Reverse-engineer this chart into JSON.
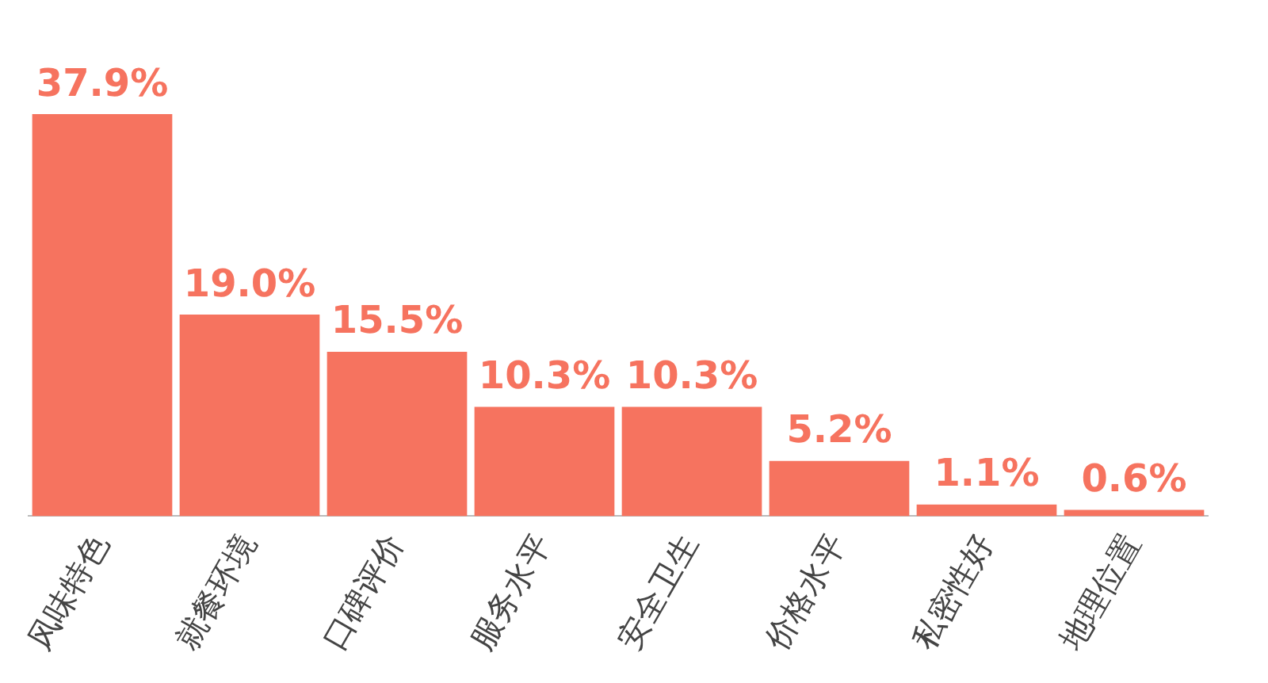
{
  "chart_data": {
    "type": "bar",
    "categories": [
      "风味特色",
      "就餐环境",
      "口碑评价",
      "服务水平",
      "安全卫生",
      "价格水平",
      "私密性好",
      "地理位置"
    ],
    "values": [
      37.9,
      19.0,
      15.5,
      10.3,
      10.3,
      5.2,
      1.1,
      0.6
    ],
    "value_labels": [
      "37.9%",
      "19.0%",
      "15.5%",
      "10.3%",
      "10.3%",
      "5.2%",
      "1.1%",
      "0.6%"
    ],
    "color": "#f6735f",
    "grid": false,
    "legend": false,
    "tick_labels": "x"
  }
}
